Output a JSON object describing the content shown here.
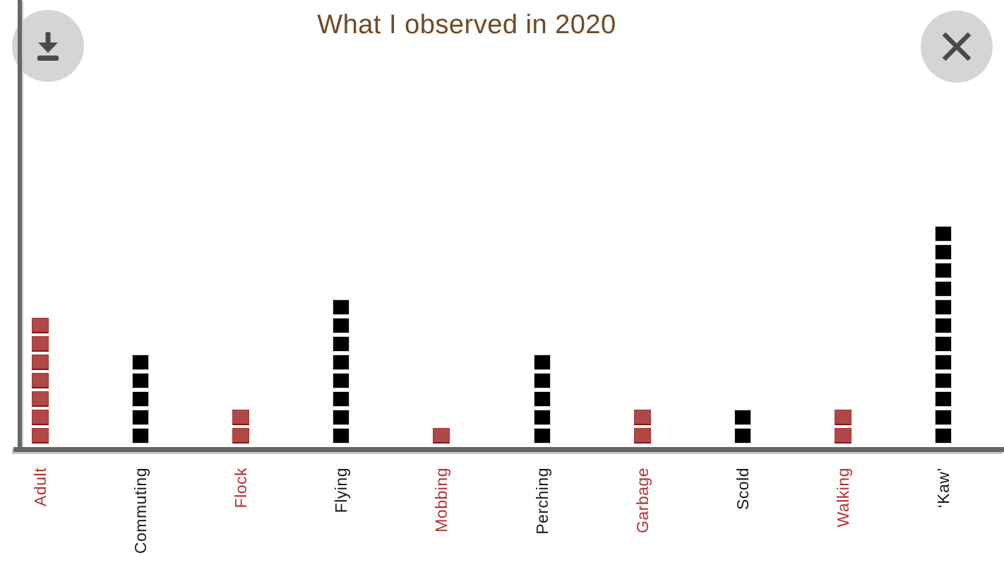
{
  "header": {
    "title": "What I observed in 2020"
  },
  "controls": {
    "download_label": "Download",
    "close_label": "Close"
  },
  "chart_data": {
    "type": "bar",
    "subtype": "unit-waffle-column",
    "title": "What I observed in 2020",
    "unit_value": 1,
    "categories": [
      "Adult",
      "Commuting",
      "Flock",
      "Flying",
      "Mobbing",
      "Perching",
      "Garbage",
      "Scold",
      "Walking",
      "‘Kaw’"
    ],
    "values": [
      7,
      5,
      2,
      8,
      1,
      5,
      2,
      2,
      2,
      12
    ],
    "colors": [
      "red",
      "black",
      "red",
      "black",
      "red",
      "black",
      "red",
      "black",
      "red",
      "black"
    ],
    "palette": {
      "red": {
        "fill": "#b04848",
        "border": "#8a1414",
        "label": "#b23230"
      },
      "black": {
        "fill": "#000000",
        "border": "#d4d4d4",
        "label": "#1a1a1a"
      }
    },
    "xlabel": "",
    "ylabel": "",
    "ylim": [
      0,
      12
    ],
    "y_axis_ticks": "none",
    "grid": false,
    "legend_position": "none"
  },
  "style": {
    "title_color": "#6e4a28",
    "axis_color": "#666666",
    "button_bg": "#d5d5d5",
    "button_icon_color": "#4a4a4a",
    "background": "#ffffff"
  }
}
